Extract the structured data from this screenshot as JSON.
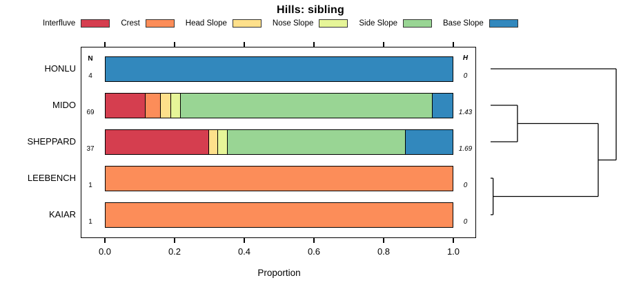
{
  "title": "Hills: sibling",
  "headers": {
    "n_header": "N",
    "h_header": "H"
  },
  "axis": {
    "label": "Proportion",
    "ticks": [
      "0.0",
      "0.2",
      "0.4",
      "0.6",
      "0.8",
      "1.0"
    ]
  },
  "legend": {
    "items": [
      {
        "label": "Interfluve",
        "color": "#D53E4F"
      },
      {
        "label": "Crest",
        "color": "#FC8D59"
      },
      {
        "label": "Head Slope",
        "color": "#FEE08B"
      },
      {
        "label": "Nose Slope",
        "color": "#E6F598"
      },
      {
        "label": "Side Slope",
        "color": "#99D594"
      },
      {
        "label": "Base Slope",
        "color": "#3288BD"
      }
    ]
  },
  "rows": [
    {
      "label": "HONLU",
      "n": "4",
      "h": "0",
      "segments": [
        {
          "series": "Base Slope",
          "fraction": 1.0
        }
      ]
    },
    {
      "label": "MIDO",
      "n": "69",
      "h": "1.43",
      "segments": [
        {
          "series": "Interfluve",
          "fraction": 0.1159
        },
        {
          "series": "Crest",
          "fraction": 0.0435
        },
        {
          "series": "Head Slope",
          "fraction": 0.029
        },
        {
          "series": "Nose Slope",
          "fraction": 0.029
        },
        {
          "series": "Side Slope",
          "fraction": 0.7246
        },
        {
          "series": "Base Slope",
          "fraction": 0.058
        }
      ]
    },
    {
      "label": "SHEPPARD",
      "n": "37",
      "h": "1.69",
      "segments": [
        {
          "series": "Interfluve",
          "fraction": 0.2973
        },
        {
          "series": "Head Slope",
          "fraction": 0.027
        },
        {
          "series": "Nose Slope",
          "fraction": 0.027
        },
        {
          "series": "Side Slope",
          "fraction": 0.5135
        },
        {
          "series": "Base Slope",
          "fraction": 0.1351
        }
      ]
    },
    {
      "label": "LEEBENCH",
      "n": "1",
      "h": "0",
      "segments": [
        {
          "series": "Crest",
          "fraction": 1.0
        }
      ]
    },
    {
      "label": "KAIAR",
      "n": "1",
      "h": "0",
      "segments": [
        {
          "series": "Crest",
          "fraction": 1.0
        }
      ]
    }
  ],
  "chart_data": {
    "type": "bar",
    "variant": "horizontal-stacked-proportion",
    "title": "Hills: sibling",
    "xlabel": "Proportion",
    "xlim": [
      0,
      1
    ],
    "xticks": [
      0.0,
      0.2,
      0.4,
      0.6,
      0.8,
      1.0
    ],
    "grid": false,
    "legend_position": "top",
    "categories": [
      "HONLU",
      "MIDO",
      "SHEPPARD",
      "LEEBENCH",
      "KAIAR"
    ],
    "N": [
      4,
      69,
      37,
      1,
      1
    ],
    "H": [
      "0",
      "1.43",
      "1.69",
      "0",
      "0"
    ],
    "series": [
      {
        "name": "Interfluve",
        "color": "#D53E4F",
        "counts": [
          0,
          8,
          11,
          0,
          0
        ],
        "values": [
          0,
          0.116,
          0.297,
          0,
          0
        ]
      },
      {
        "name": "Crest",
        "color": "#FC8D59",
        "counts": [
          0,
          3,
          0,
          1,
          1
        ],
        "values": [
          0,
          0.043,
          0,
          1,
          1
        ]
      },
      {
        "name": "Head Slope",
        "color": "#FEE08B",
        "counts": [
          0,
          2,
          1,
          0,
          0
        ],
        "values": [
          0,
          0.029,
          0.027,
          0,
          0
        ]
      },
      {
        "name": "Nose Slope",
        "color": "#E6F598",
        "counts": [
          0,
          2,
          1,
          0,
          0
        ],
        "values": [
          0,
          0.029,
          0.027,
          0,
          0
        ]
      },
      {
        "name": "Side Slope",
        "color": "#99D594",
        "counts": [
          0,
          50,
          19,
          0,
          0
        ],
        "values": [
          0,
          0.725,
          0.514,
          0,
          0
        ]
      },
      {
        "name": "Base Slope",
        "color": "#3288BD",
        "counts": [
          4,
          4,
          5,
          0,
          0
        ],
        "values": [
          1,
          0.058,
          0.135,
          0,
          0
        ]
      }
    ],
    "dendrogram": {
      "side": "right",
      "leaf_order": [
        "HONLU",
        "MIDO",
        "SHEPPARD",
        "LEEBENCH",
        "KAIAR"
      ],
      "joins": [
        {
          "members": [
            "LEEBENCH",
            "KAIAR"
          ],
          "rel_height": 0.02
        },
        {
          "members": [
            "MIDO",
            "SHEPPARD"
          ],
          "rel_height": 0.214
        },
        {
          "members": [
            "MIDO",
            "SHEPPARD",
            "LEEBENCH",
            "KAIAR"
          ],
          "rel_height": 0.857
        },
        {
          "members": [
            "HONLU",
            "MIDO",
            "SHEPPARD",
            "LEEBENCH",
            "KAIAR"
          ],
          "rel_height": 1.0
        }
      ]
    }
  }
}
